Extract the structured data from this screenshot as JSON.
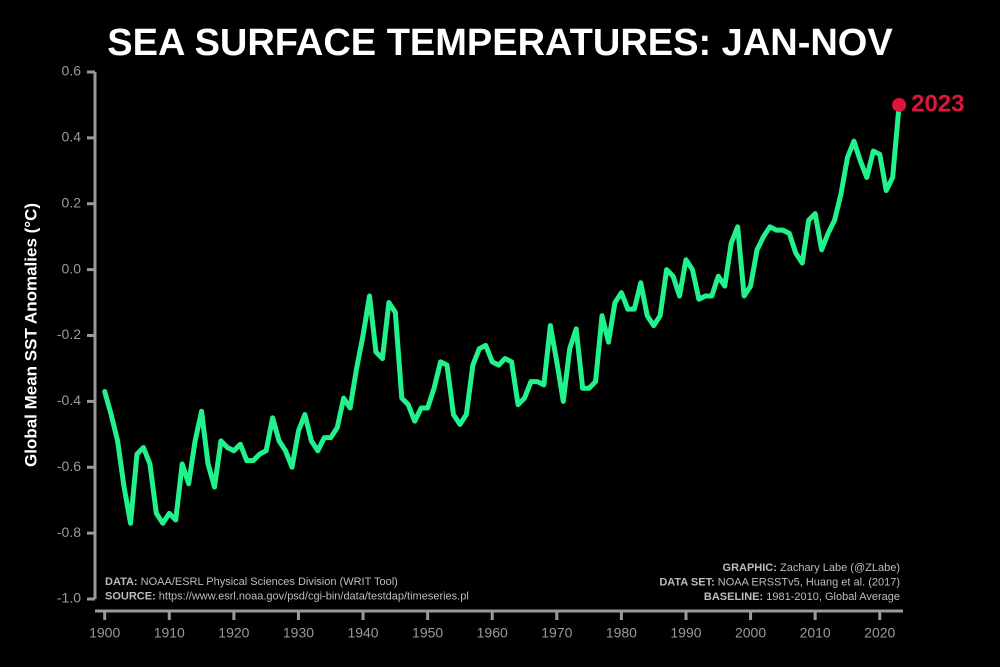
{
  "chart_data": {
    "type": "line",
    "title": "SEA SURFACE TEMPERATURES: JAN-NOV",
    "y_label": "Global Mean SST Anomalies (°C)",
    "x": [
      1900,
      1901,
      1902,
      1903,
      1904,
      1905,
      1906,
      1907,
      1908,
      1909,
      1910,
      1911,
      1912,
      1913,
      1914,
      1915,
      1916,
      1917,
      1918,
      1919,
      1920,
      1921,
      1922,
      1923,
      1924,
      1925,
      1926,
      1927,
      1928,
      1929,
      1930,
      1931,
      1932,
      1933,
      1934,
      1935,
      1936,
      1937,
      1938,
      1939,
      1940,
      1941,
      1942,
      1943,
      1944,
      1945,
      1946,
      1947,
      1948,
      1949,
      1950,
      1951,
      1952,
      1953,
      1954,
      1955,
      1956,
      1957,
      1958,
      1959,
      1960,
      1961,
      1962,
      1963,
      1964,
      1965,
      1966,
      1967,
      1968,
      1969,
      1970,
      1971,
      1972,
      1973,
      1974,
      1975,
      1976,
      1977,
      1978,
      1979,
      1980,
      1981,
      1982,
      1983,
      1984,
      1985,
      1986,
      1987,
      1988,
      1989,
      1990,
      1991,
      1992,
      1993,
      1994,
      1995,
      1996,
      1997,
      1998,
      1999,
      2000,
      2001,
      2002,
      2003,
      2004,
      2005,
      2006,
      2007,
      2008,
      2009,
      2010,
      2011,
      2012,
      2013,
      2014,
      2015,
      2016,
      2017,
      2018,
      2019,
      2020,
      2021,
      2022,
      2023
    ],
    "series": [
      {
        "name": "SST anomaly",
        "color": "#22f28c",
        "values": [
          -0.37,
          -0.44,
          -0.52,
          -0.66,
          -0.77,
          -0.56,
          -0.54,
          -0.59,
          -0.74,
          -0.77,
          -0.74,
          -0.76,
          -0.59,
          -0.65,
          -0.52,
          -0.43,
          -0.59,
          -0.66,
          -0.52,
          -0.54,
          -0.55,
          -0.53,
          -0.58,
          -0.58,
          -0.56,
          -0.55,
          -0.45,
          -0.52,
          -0.55,
          -0.6,
          -0.49,
          -0.44,
          -0.52,
          -0.55,
          -0.51,
          -0.51,
          -0.48,
          -0.39,
          -0.42,
          -0.3,
          -0.2,
          -0.08,
          -0.25,
          -0.27,
          -0.1,
          -0.13,
          -0.39,
          -0.41,
          -0.46,
          -0.42,
          -0.42,
          -0.36,
          -0.28,
          -0.29,
          -0.44,
          -0.47,
          -0.44,
          -0.29,
          -0.24,
          -0.23,
          -0.28,
          -0.29,
          -0.27,
          -0.28,
          -0.41,
          -0.39,
          -0.34,
          -0.34,
          -0.35,
          -0.17,
          -0.28,
          -0.4,
          -0.24,
          -0.18,
          -0.36,
          -0.36,
          -0.34,
          -0.14,
          -0.22,
          -0.1,
          -0.07,
          -0.12,
          -0.12,
          -0.04,
          -0.14,
          -0.17,
          -0.14,
          0.0,
          -0.02,
          -0.08,
          0.03,
          0.0,
          -0.09,
          -0.08,
          -0.08,
          -0.02,
          -0.05,
          0.08,
          0.13,
          -0.08,
          -0.05,
          0.06,
          0.1,
          0.13,
          0.12,
          0.12,
          0.11,
          0.05,
          0.02,
          0.15,
          0.17,
          0.06,
          0.11,
          0.15,
          0.23,
          0.34,
          0.39,
          0.33,
          0.28,
          0.36,
          0.35,
          0.24,
          0.28,
          0.5
        ]
      }
    ],
    "highlight": {
      "label": "2023",
      "color": "#e0143c"
    },
    "xlim": [
      1898.5,
      2023.6
    ],
    "ylim": [
      -1.0,
      0.6
    ],
    "xticks": [
      1900,
      1910,
      1920,
      1930,
      1940,
      1950,
      1960,
      1970,
      1980,
      1990,
      2000,
      2010,
      2020
    ],
    "yticks": [
      {
        "value": -1.0,
        "label": "-1.0"
      },
      -0.8,
      -0.6,
      -0.4,
      -0.2,
      {
        "value": 0,
        "label": "0.0"
      },
      0.2,
      0.4,
      0.6
    ],
    "notes_left": [
      {
        "label": "DATA:",
        "text": "NOAA/ESRL Physical Sciences Division (WRIT Tool)"
      },
      {
        "label": "SOURCE:",
        "text": "https://www.esrl.noaa.gov/psd/cgi-bin/data/testdap/timeseries.pl"
      }
    ],
    "notes_right": [
      {
        "label": "GRAPHIC:",
        "text": "Zachary Labe (@ZLabe)"
      },
      {
        "label": "DATA SET:",
        "text": "NOAA ERSSTv5, Huang et al. (2017)"
      },
      {
        "label": "BASELINE:",
        "text": "1981-2010, Global Average"
      }
    ]
  }
}
